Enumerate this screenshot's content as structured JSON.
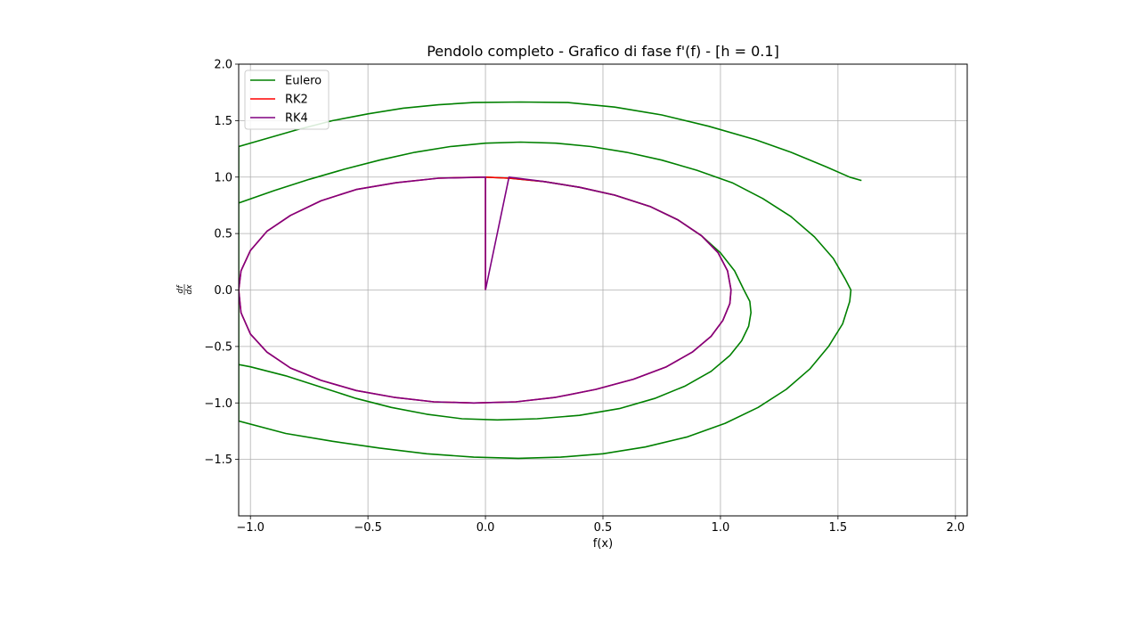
{
  "chart_data": {
    "type": "line",
    "title": "Pendolo completo - Grafico di fase f'(f) - [h = 0.1]",
    "xlabel": "f(x)",
    "ylabel": "df/dx",
    "xlim": [
      -1.05,
      2.05
    ],
    "ylim": [
      -2.0,
      2.0
    ],
    "xticks": [
      -1.0,
      -0.5,
      0.0,
      0.5,
      1.0,
      1.5,
      2.0
    ],
    "xtick_labels": [
      "−1.0",
      "−0.5",
      "0.0",
      "0.5",
      "1.0",
      "1.5",
      "2.0"
    ],
    "yticks": [
      -1.5,
      -1.0,
      -0.5,
      0.0,
      0.5,
      1.0,
      1.5,
      2.0
    ],
    "ytick_labels": [
      "−1.5",
      "−1.0",
      "−0.5",
      "0.0",
      "0.5",
      "1.0",
      "1.5",
      "2.0"
    ],
    "grid": true,
    "legend_position": "top-left",
    "series": [
      {
        "name": "Eulero",
        "color": "#008000",
        "x": [
          0.0,
          0.1,
          0.25,
          0.4,
          0.55,
          0.7,
          0.82,
          0.92,
          1.0,
          1.06,
          1.1,
          1.125,
          1.13,
          1.12,
          1.09,
          1.04,
          0.96,
          0.85,
          0.72,
          0.57,
          0.4,
          0.22,
          0.05,
          -0.1,
          -0.25,
          -0.4,
          -0.55,
          -0.7,
          -0.85,
          -1.0,
          -1.05,
          -1.05,
          -1.05,
          -1.05,
          -0.9,
          -0.75,
          -0.6,
          -0.45,
          -0.3,
          -0.15,
          0.0,
          0.15,
          0.3,
          0.45,
          0.6,
          0.75,
          0.9,
          1.05,
          1.18,
          1.3,
          1.4,
          1.48,
          1.53,
          1.555,
          1.55,
          1.52,
          1.46,
          1.38,
          1.28,
          1.16,
          1.02,
          0.86,
          0.68,
          0.5,
          0.32,
          0.14,
          -0.05,
          -0.25,
          -0.45,
          -0.65,
          -0.85,
          -1.05,
          -1.05,
          -1.05,
          -0.95,
          -0.8,
          -0.65,
          -0.5,
          -0.35,
          -0.2,
          -0.05,
          0.15,
          0.35,
          0.55,
          0.75,
          0.95,
          1.15,
          1.3,
          1.45,
          1.55,
          1.6
        ],
        "y": [
          1.0,
          0.99,
          0.96,
          0.91,
          0.84,
          0.74,
          0.62,
          0.48,
          0.33,
          0.17,
          0.0,
          -0.1,
          -0.2,
          -0.32,
          -0.45,
          -0.58,
          -0.72,
          -0.85,
          -0.96,
          -1.05,
          -1.11,
          -1.14,
          -1.15,
          -1.14,
          -1.1,
          -1.04,
          -0.96,
          -0.86,
          -0.76,
          -0.68,
          -0.66,
          0.0,
          0.77,
          0.77,
          0.88,
          0.98,
          1.07,
          1.15,
          1.22,
          1.27,
          1.3,
          1.31,
          1.3,
          1.27,
          1.22,
          1.15,
          1.06,
          0.95,
          0.81,
          0.65,
          0.47,
          0.28,
          0.1,
          0.0,
          -0.1,
          -0.3,
          -0.5,
          -0.7,
          -0.88,
          -1.04,
          -1.18,
          -1.3,
          -1.39,
          -1.45,
          -1.48,
          -1.49,
          -1.48,
          -1.45,
          -1.4,
          -1.34,
          -1.27,
          -1.16,
          0.0,
          1.27,
          1.33,
          1.42,
          1.5,
          1.56,
          1.61,
          1.64,
          1.66,
          1.665,
          1.66,
          1.62,
          1.55,
          1.45,
          1.33,
          1.22,
          1.09,
          1.0,
          0.97
        ]
      },
      {
        "name": "RK2",
        "color": "#ff0000",
        "x": [
          0.0,
          0.0,
          0.1,
          0.25,
          0.4,
          0.55,
          0.7,
          0.82,
          0.92,
          0.99,
          1.03,
          1.045,
          1.04,
          1.01,
          0.96,
          0.88,
          0.77,
          0.63,
          0.47,
          0.3,
          0.13,
          -0.05,
          -0.22,
          -0.39,
          -0.55,
          -0.7,
          -0.83,
          -0.93,
          -1.0,
          -1.04,
          -1.05,
          -1.04,
          -1.0,
          -0.93,
          -0.83,
          -0.7,
          -0.55,
          -0.38,
          -0.2,
          -0.02,
          0.0
        ],
        "y": [
          0.0,
          1.0,
          0.99,
          0.96,
          0.91,
          0.84,
          0.74,
          0.62,
          0.48,
          0.33,
          0.17,
          0.0,
          -0.12,
          -0.27,
          -0.41,
          -0.55,
          -0.68,
          -0.79,
          -0.88,
          -0.95,
          -0.99,
          -1.0,
          -0.99,
          -0.95,
          -0.89,
          -0.8,
          -0.69,
          -0.55,
          -0.39,
          -0.2,
          0.0,
          0.17,
          0.35,
          0.52,
          0.66,
          0.79,
          0.89,
          0.95,
          0.99,
          1.0,
          1.0
        ]
      },
      {
        "name": "RK4",
        "color": "#800080",
        "x": [
          0.0,
          0.1,
          0.25,
          0.4,
          0.55,
          0.7,
          0.82,
          0.92,
          0.99,
          1.03,
          1.045,
          1.04,
          1.01,
          0.96,
          0.88,
          0.77,
          0.63,
          0.47,
          0.3,
          0.13,
          -0.05,
          -0.22,
          -0.39,
          -0.55,
          -0.7,
          -0.83,
          -0.93,
          -1.0,
          -1.04,
          -1.05,
          -1.04,
          -1.0,
          -0.93,
          -0.83,
          -0.7,
          -0.55,
          -0.38,
          -0.2,
          0.0,
          0.0
        ],
        "y": [
          0.0,
          1.0,
          0.96,
          0.91,
          0.84,
          0.74,
          0.62,
          0.48,
          0.33,
          0.17,
          0.0,
          -0.12,
          -0.27,
          -0.41,
          -0.55,
          -0.68,
          -0.79,
          -0.88,
          -0.95,
          -0.99,
          -1.0,
          -0.99,
          -0.95,
          -0.89,
          -0.8,
          -0.69,
          -0.55,
          -0.39,
          -0.2,
          0.0,
          0.17,
          0.35,
          0.52,
          0.66,
          0.79,
          0.89,
          0.95,
          0.99,
          1.0,
          0.0
        ]
      }
    ]
  }
}
